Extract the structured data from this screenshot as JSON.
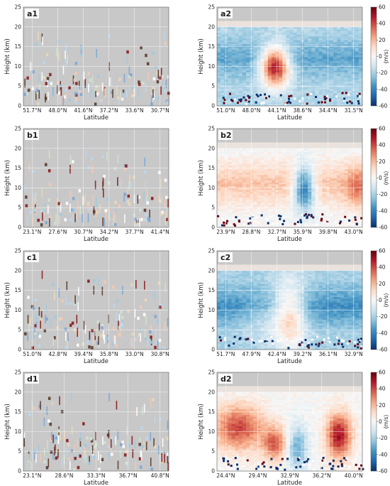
{
  "figure": {
    "colorbar_unit": "(m/s)",
    "colorbar_ticks": [
      60,
      40,
      20,
      0,
      -20,
      -40,
      -60
    ],
    "colormap": {
      "negative": "#08306b",
      "zero": "#f7f7f7",
      "positive": "#67000d"
    },
    "background": "#c8c8c8",
    "grid": true
  },
  "chart_data": [
    {
      "id": "a1",
      "type": "heatmap",
      "panel_label": "a1",
      "xlabel": "Latitude",
      "ylabel": "Height (km)",
      "xticks": [
        "51.7°N",
        "48.0°N",
        "41.6°N",
        "37.2°N",
        "33.6°N",
        "30.7°N"
      ],
      "ylim": [
        0,
        25
      ],
      "yticks": [
        0,
        5,
        10,
        15,
        20,
        25
      ],
      "colorbar": false
    },
    {
      "id": "a2",
      "type": "heatmap",
      "panel_label": "a2",
      "xlabel": "Latitude",
      "ylabel": "Height (km)",
      "xticks": [
        "51.0°N",
        "48.0°N",
        "44.1°N",
        "38.6°N",
        "34.4°N",
        "31.5°N"
      ],
      "ylim": [
        0,
        25
      ],
      "yticks": [
        0,
        5,
        10,
        15,
        20,
        25
      ],
      "colorbar": true,
      "clim": [
        -60,
        60
      ]
    },
    {
      "id": "b1",
      "type": "heatmap",
      "panel_label": "b1",
      "xlabel": "Latitude",
      "ylabel": "Height (km)",
      "xticks": [
        "23.1°N",
        "27.6°N",
        "30.7°N",
        "34.2°N",
        "37.7°N",
        "41.4°N"
      ],
      "ylim": [
        0,
        25
      ],
      "yticks": [
        0,
        5,
        10,
        15,
        20,
        25
      ],
      "colorbar": false
    },
    {
      "id": "b2",
      "type": "heatmap",
      "panel_label": "b2",
      "xlabel": "Latitude",
      "ylabel": "Height (km)",
      "xticks": [
        "23.9°N",
        "28.8°N",
        "32.7°N",
        "35.9°N",
        "39.8°N",
        "43.0°N"
      ],
      "ylim": [
        0,
        25
      ],
      "yticks": [
        0,
        5,
        10,
        15,
        20,
        25
      ],
      "colorbar": true,
      "clim": [
        -60,
        60
      ]
    },
    {
      "id": "c1",
      "type": "heatmap",
      "panel_label": "c1",
      "xlabel": "Latitude",
      "ylabel": "Height (km)",
      "xticks": [
        "51.0°N",
        "42.8°N",
        "39.4°N",
        "35.8°N",
        "33.0°N",
        "30.8°N"
      ],
      "ylim": [
        0,
        25
      ],
      "yticks": [
        0,
        5,
        10,
        15,
        20,
        25
      ],
      "colorbar": false
    },
    {
      "id": "c2",
      "type": "heatmap",
      "panel_label": "c2",
      "xlabel": "Latitude",
      "ylabel": "Height (km)",
      "xticks": [
        "51.7°N",
        "47.9°N",
        "42.4°N",
        "39.2°N",
        "36.1°N",
        "32.9°N"
      ],
      "ylim": [
        0,
        25
      ],
      "yticks": [
        0,
        5,
        10,
        15,
        20,
        25
      ],
      "colorbar": true,
      "clim": [
        -60,
        60
      ]
    },
    {
      "id": "d1",
      "type": "heatmap",
      "panel_label": "d1",
      "xlabel": "Latitude",
      "ylabel": "Height (km)",
      "xticks": [
        "23.1°N",
        "28.6°N",
        "33.3°N",
        "36.7°N",
        "40.8°N"
      ],
      "ylim": [
        0,
        25
      ],
      "yticks": [
        0,
        5,
        10,
        15,
        20,
        25
      ],
      "colorbar": false
    },
    {
      "id": "d2",
      "type": "heatmap",
      "panel_label": "d2",
      "xlabel": "Latitude",
      "ylabel": "Height (km)",
      "xticks": [
        "24.4°N",
        "29.4°N",
        "32.9°N",
        "36.2°N",
        "40.0°N"
      ],
      "ylim": [
        0,
        25
      ],
      "yticks": [
        0,
        5,
        10,
        15,
        20,
        25
      ],
      "colorbar": true,
      "clim": [
        -60,
        60
      ]
    }
  ]
}
